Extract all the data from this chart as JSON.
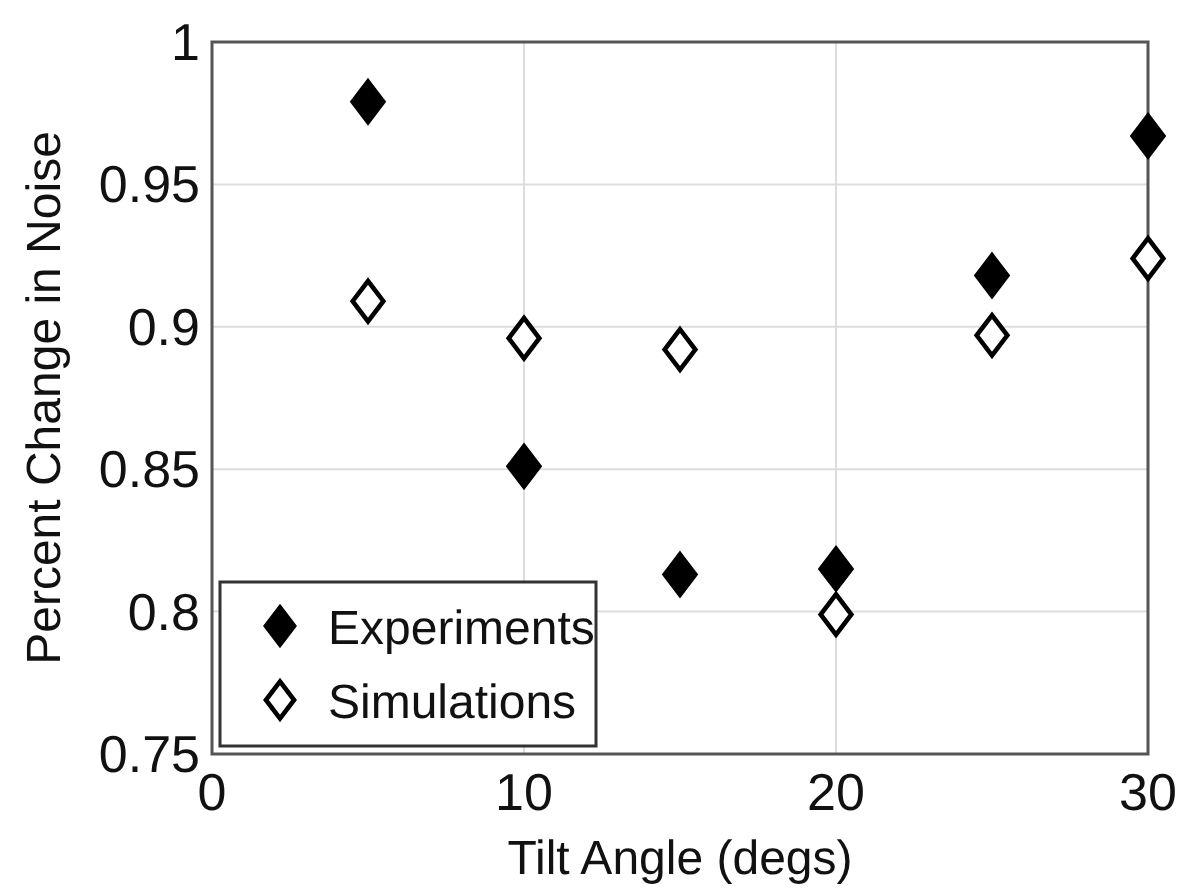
{
  "chart_data": {
    "type": "scatter",
    "xlabel": "Tilt Angle (degs)",
    "ylabel": "Percent Change in Noise",
    "x": [
      5,
      10,
      15,
      20,
      25,
      30
    ],
    "series": [
      {
        "name": "Experiments",
        "color": "#000000",
        "marker": "diamond",
        "values": [
          0.979,
          0.851,
          0.813,
          0.815,
          0.918,
          0.967
        ]
      },
      {
        "name": "Simulations",
        "color": "#000000",
        "marker": "diamond",
        "values": [
          0.909,
          0.896,
          0.892,
          0.799,
          0.897,
          0.924
        ]
      }
    ],
    "xlim": [
      0,
      30
    ],
    "xticks": [
      0,
      10,
      20,
      30
    ],
    "ylim": [
      0.75,
      1
    ],
    "yticks": [
      0.75,
      0.8,
      0.85,
      0.9,
      0.95,
      1
    ],
    "grid": true,
    "legend": "bottom left"
  }
}
